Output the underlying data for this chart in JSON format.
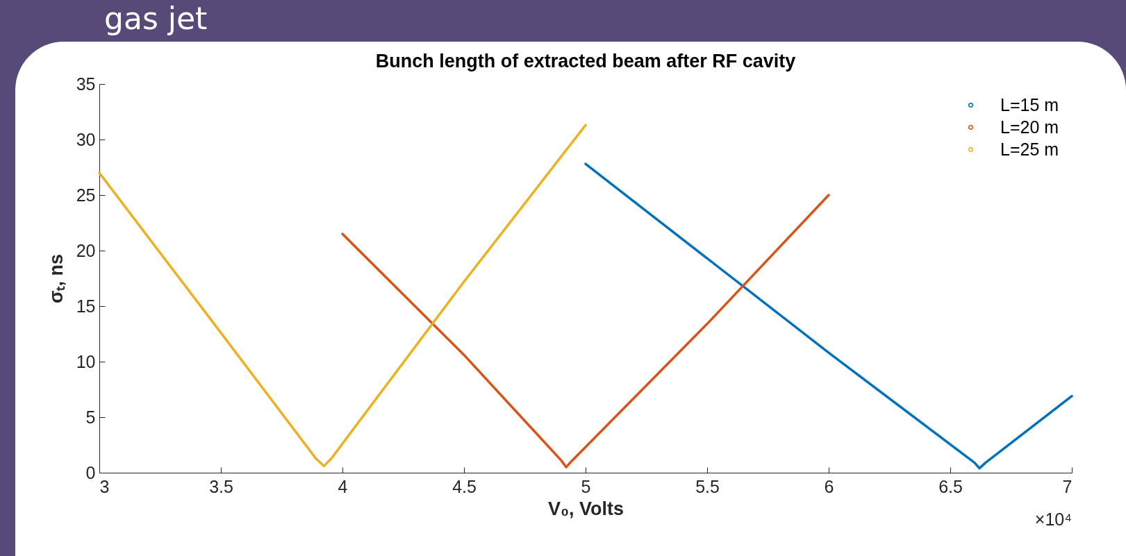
{
  "chart_data": {
    "type": "line",
    "title": "Bunch length of extracted beam after RF cavity",
    "xlabel": "V₀, Volts",
    "ylabel": "σₜ, ns",
    "annotations": [
      "gas jet",
      "×10⁴"
    ],
    "series": [
      {
        "name": "L=15 m",
        "color": "#0072bd",
        "x": [
          5,
          6,
          6.6,
          6.62,
          6.645,
          7
        ],
        "values": [
          27.8,
          10.8,
          0.9,
          0.4,
          0.9,
          6.9
        ]
      },
      {
        "name": "L=20 m",
        "color": "#d95319",
        "x": [
          4,
          4.5,
          4.9,
          4.92,
          4.945,
          5.5,
          6
        ],
        "values": [
          21.5,
          10.6,
          1.1,
          0.5,
          1.1,
          13.4,
          25
        ]
      },
      {
        "name": "L=25 m",
        "color": "#edb120",
        "x": [
          3,
          3.5,
          3.89,
          3.924,
          3.955,
          4.5,
          5
        ],
        "values": [
          27,
          12.6,
          1.3,
          0.6,
          1.3,
          17.2,
          31.3
        ]
      }
    ],
    "xlim": [
      3,
      7
    ],
    "ylim": [
      0,
      35
    ],
    "xticks": [
      3,
      3.5,
      4,
      4.5,
      5,
      5.5,
      6,
      6.5,
      7
    ],
    "yticks": [
      0,
      5,
      10,
      15,
      20,
      25,
      30,
      35
    ],
    "grid": false,
    "legend": "top right",
    "marker": "none",
    "line_style": "solid"
  }
}
